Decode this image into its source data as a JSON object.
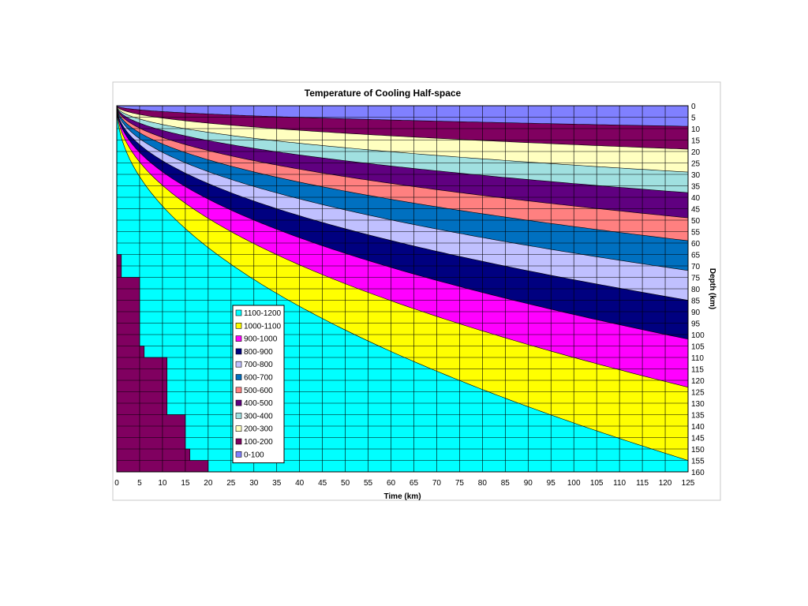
{
  "chart_data": {
    "type": "area",
    "title": "Temperature of Cooling Half-space",
    "xlabel": "Time (km)",
    "ylabel": "Depth (km)",
    "xlim": [
      0,
      125
    ],
    "ylim": [
      160,
      0
    ],
    "y_axis_position": "right",
    "y_inverted": true,
    "grid": true,
    "legend_position": "lower-center-left",
    "x_ticks": [
      0,
      5,
      10,
      15,
      20,
      25,
      30,
      35,
      40,
      45,
      50,
      55,
      60,
      65,
      70,
      75,
      80,
      85,
      90,
      95,
      100,
      105,
      110,
      115,
      120,
      125
    ],
    "y_ticks": [
      0,
      5,
      10,
      15,
      20,
      25,
      30,
      35,
      40,
      45,
      50,
      55,
      60,
      65,
      70,
      75,
      80,
      85,
      90,
      95,
      100,
      105,
      110,
      115,
      120,
      125,
      130,
      135,
      140,
      145,
      150,
      155,
      160
    ],
    "bands": [
      {
        "name": "0-100",
        "color": "#8080ff"
      },
      {
        "name": "100-200",
        "color": "#800060"
      },
      {
        "name": "200-300",
        "color": "#ffffc0"
      },
      {
        "name": "300-400",
        "color": "#a0e0e0"
      },
      {
        "name": "400-500",
        "color": "#600080"
      },
      {
        "name": "500-600",
        "color": "#ff8080"
      },
      {
        "name": "600-700",
        "color": "#0070c0"
      },
      {
        "name": "700-800",
        "color": "#c0c0ff"
      },
      {
        "name": "800-900",
        "color": "#000080"
      },
      {
        "name": "900-1000",
        "color": "#ff00ff"
      },
      {
        "name": "1000-1100",
        "color": "#ffff00"
      },
      {
        "name": "1100-1200",
        "color": "#00ffff"
      }
    ],
    "legend_order": [
      "1100-1200",
      "1000-1100",
      "900-1000",
      "800-900",
      "700-800",
      "600-700",
      "500-600",
      "400-500",
      "300-400",
      "200-300",
      "100-200",
      "0-100"
    ],
    "boundaries": [
      {
        "temperature": 100,
        "depth_at_125": 9
      },
      {
        "temperature": 200,
        "depth_at_125": 19
      },
      {
        "temperature": 300,
        "depth_at_125": 29
      },
      {
        "temperature": 400,
        "depth_at_125": 38
      },
      {
        "temperature": 500,
        "depth_at_125": 49
      },
      {
        "temperature": 600,
        "depth_at_125": 59
      },
      {
        "temperature": 700,
        "depth_at_125": 72
      },
      {
        "temperature": 800,
        "depth_at_125": 85
      },
      {
        "temperature": 900,
        "depth_at_125": 102
      },
      {
        "temperature": 1000,
        "depth_at_125": 123
      },
      {
        "temperature": 1100,
        "depth_at_125": 155
      }
    ],
    "bottom_left_region": {
      "color": "#800060",
      "steps": [
        {
          "depth": 65,
          "time": 1
        },
        {
          "depth": 75,
          "time": 5
        },
        {
          "depth": 105,
          "time": 6
        },
        {
          "depth": 110,
          "time": 11
        },
        {
          "depth": 135,
          "time": 15
        },
        {
          "depth": 150,
          "time": 16
        },
        {
          "depth": 155,
          "time": 20
        },
        {
          "depth": 160,
          "time": 21
        }
      ]
    }
  }
}
